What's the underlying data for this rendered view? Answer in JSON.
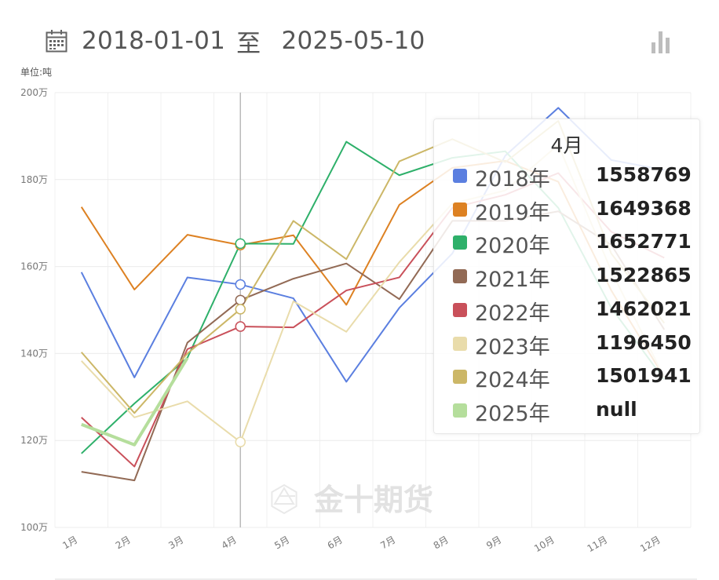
{
  "header": {
    "start_date": "2018-01-01",
    "separator": "至",
    "end_date": "2025-05-10",
    "calendar_icon": "calendar-icon",
    "chart_toggle_icon": "bar-chart-icon"
  },
  "watermark": {
    "text": "金十期货",
    "icon": "jin10-logo-icon"
  },
  "chart_data": {
    "type": "line",
    "unit_label": "单位:吨",
    "title": "",
    "xlabel": "",
    "ylabel": "",
    "categories": [
      "1月",
      "2月",
      "3月",
      "4月",
      "5月",
      "6月",
      "7月",
      "8月",
      "9月",
      "10月",
      "11月",
      "12月"
    ],
    "ylim": [
      1000000,
      2000000
    ],
    "y_ticks": [
      1000000,
      1200000,
      1400000,
      1600000,
      1800000,
      2000000
    ],
    "y_tick_labels": [
      "100万",
      "120万",
      "140万",
      "160万",
      "180万",
      "200万"
    ],
    "grid": true,
    "highlight_index": 3,
    "series": [
      {
        "name": "2018年",
        "color": "#5b7fe0",
        "values": [
          1587000,
          1345000,
          1575000,
          1558769,
          1527000,
          1335000,
          1505000,
          1630000,
          1855000,
          1965000,
          1845000,
          1822000
        ]
      },
      {
        "name": "2019年",
        "color": "#dd8122",
        "values": [
          1737000,
          1547000,
          1673000,
          1649368,
          1672000,
          1512000,
          1742000,
          1827000,
          1843000,
          1795000,
          1545000,
          1345000
        ]
      },
      {
        "name": "2020年",
        "color": "#2eb06a",
        "values": [
          1170000,
          1285000,
          1390000,
          1652771,
          1652000,
          1887000,
          1810000,
          1850000,
          1865000,
          1735000,
          1505000,
          1340000
        ]
      },
      {
        "name": "2021年",
        "color": "#926a55",
        "values": [
          1128000,
          1108000,
          1425000,
          1522865,
          1572000,
          1607000,
          1525000,
          1705000,
          1705000,
          1727000,
          1650000,
          1455000
        ]
      },
      {
        "name": "2022年",
        "color": "#c9505a",
        "values": [
          1253000,
          1140000,
          1410000,
          1462021,
          1460000,
          1545000,
          1575000,
          1735000,
          1765000,
          1815000,
          1680000,
          1620000
        ]
      },
      {
        "name": "2023年",
        "color": "#e9dcab",
        "values": [
          1383000,
          1253000,
          1290000,
          1196450,
          1520000,
          1450000,
          1610000,
          1745000,
          1775000,
          1880000,
          1590000,
          1345000
        ]
      },
      {
        "name": "2024年",
        "color": "#ccb767",
        "values": [
          1403000,
          1263000,
          1400000,
          1501941,
          1705000,
          1617000,
          1842000,
          1893000,
          1840000,
          1935000,
          1630000,
          1470000
        ]
      },
      {
        "name": "2025年",
        "color": "#b5de9c",
        "values": [
          1237000,
          1190000,
          1390000,
          null,
          null,
          null,
          null,
          null,
          null,
          null,
          null,
          null
        ]
      }
    ]
  },
  "tooltip": {
    "title": "4月",
    "rows": [
      {
        "name": "2018年",
        "value": "1558769",
        "color": "#5b7fe0"
      },
      {
        "name": "2019年",
        "value": "1649368",
        "color": "#dd8122"
      },
      {
        "name": "2020年",
        "value": "1652771",
        "color": "#2eb06a"
      },
      {
        "name": "2021年",
        "value": "1522865",
        "color": "#926a55"
      },
      {
        "name": "2022年",
        "value": "1462021",
        "color": "#c9505a"
      },
      {
        "name": "2023年",
        "value": "1196450",
        "color": "#e9dcab"
      },
      {
        "name": "2024年",
        "value": "1501941",
        "color": "#ccb767"
      },
      {
        "name": "2025年",
        "value": "null",
        "color": "#b5de9c"
      }
    ]
  }
}
